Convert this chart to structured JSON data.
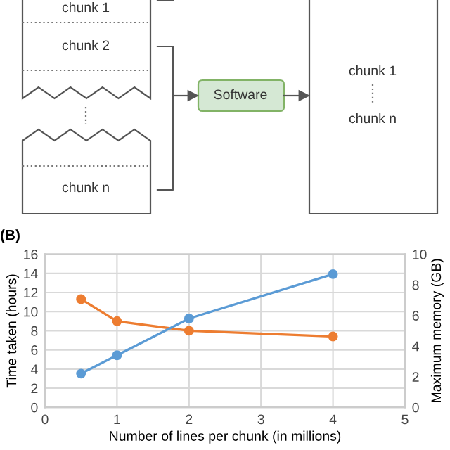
{
  "chart_data": [
    {
      "type": "other",
      "annotations": [
        "chunk 1",
        "chunk 2",
        "chunk n",
        "Software",
        "chunk 1",
        "chunk n"
      ]
    },
    {
      "type": "line",
      "xlabel": "Number of lines per chunk (in millions)",
      "ylabel": "Time taken (hours)",
      "y2label": "Maximum memory (GB)",
      "annotations": [
        "(B)"
      ],
      "x": [
        0.5,
        1,
        2,
        4
      ],
      "xlim": [
        0,
        5
      ],
      "xticks": [
        0,
        1,
        2,
        3,
        4,
        5
      ],
      "ylim": [
        0,
        16
      ],
      "yticks": [
        0,
        2,
        4,
        6,
        8,
        10,
        12,
        14,
        16
      ],
      "y2lim": [
        0,
        10
      ],
      "y2ticks": [
        0,
        2,
        4,
        6,
        8,
        10
      ],
      "grid": true,
      "marker": "circle",
      "line_style": "solid",
      "series": [
        {
          "color": "#ed7d31",
          "values": [
            11.3,
            9.0,
            8.0,
            7.4
          ]
        },
        {
          "color": "#5b9bd5",
          "axis": "y2",
          "values": [
            2.2,
            3.4,
            5.8,
            8.7
          ]
        }
      ]
    }
  ]
}
